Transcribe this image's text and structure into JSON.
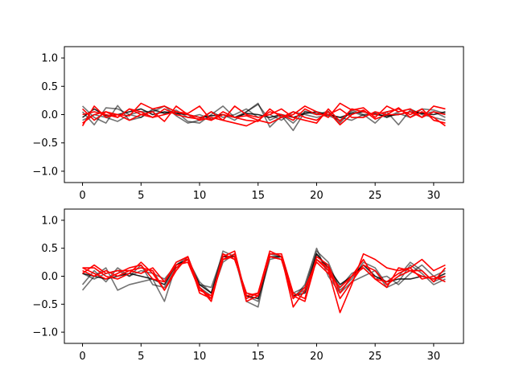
{
  "colors": {
    "gray": "#000000",
    "red": "#ff0000",
    "background": "#ffffff"
  },
  "chart_data": [
    {
      "type": "line",
      "title": "",
      "xlabel": "",
      "ylabel": "",
      "xlim": [
        -1.55,
        32.55
      ],
      "ylim": [
        -1.2,
        1.2
      ],
      "xticks": [
        0,
        5,
        10,
        15,
        20,
        25,
        30
      ],
      "yticks": [
        -1.0,
        -0.5,
        0.0,
        0.5,
        1.0
      ],
      "ytick_labels": [
        "−1.0",
        "−0.5",
        "0.0",
        "0.5",
        "1.0"
      ],
      "grid": false,
      "x": [
        0,
        1,
        2,
        3,
        4,
        5,
        6,
        7,
        8,
        9,
        10,
        11,
        12,
        13,
        14,
        15,
        16,
        17,
        18,
        19,
        20,
        21,
        22,
        23,
        24,
        25,
        26,
        27,
        28,
        29,
        30,
        31
      ],
      "series": [
        {
          "color": "#000000",
          "opacity": 0.55,
          "values": [
            0.15,
            -0.05,
            -0.15,
            0.16,
            -0.1,
            -0.05,
            0.08,
            0.02,
            0.05,
            -0.12,
            -0.15,
            0.0,
            0.15,
            -0.05,
            0.05,
            0.2,
            -0.22,
            -0.02,
            -0.28,
            0.05,
            0.0,
            0.06,
            -0.15,
            0.08,
            0.0,
            -0.15,
            0.05,
            -0.18,
            0.08,
            0.02,
            0.05,
            -0.05
          ]
        },
        {
          "color": "#000000",
          "opacity": 0.55,
          "values": [
            0.05,
            -0.18,
            0.12,
            0.1,
            0.0,
            -0.05,
            0.1,
            0.02,
            0.08,
            -0.05,
            0.0,
            -0.08,
            0.0,
            -0.1,
            0.05,
            0.18,
            -0.1,
            0.0,
            -0.15,
            0.06,
            0.02,
            -0.02,
            -0.1,
            0.05,
            -0.02,
            0.03,
            -0.05,
            0.02,
            -0.05,
            0.1,
            0.08,
            0.02
          ]
        },
        {
          "color": "#000000",
          "opacity": 0.55,
          "values": [
            -0.1,
            0.0,
            -0.05,
            -0.12,
            0.0,
            0.05,
            0.05,
            0.15,
            -0.02,
            -0.15,
            -0.1,
            0.05,
            -0.05,
            0.0,
            0.1,
            -0.05,
            0.0,
            -0.1,
            0.05,
            0.0,
            -0.05,
            0.0,
            -0.05,
            -0.1,
            0.0,
            0.02,
            -0.05,
            0.05,
            0.1,
            0.0,
            -0.05,
            -0.1
          ]
        },
        {
          "color": "#000000",
          "opacity": 0.85,
          "values": [
            -0.05,
            0.1,
            -0.02,
            0.0,
            0.05,
            0.1,
            0.0,
            0.05,
            0.02,
            0.0,
            -0.05,
            -0.02,
            0.0,
            -0.05,
            0.02,
            0.0,
            -0.05,
            0.0,
            -0.05,
            0.02,
            0.05,
            0.0,
            -0.05,
            0.02,
            0.05,
            0.0,
            -0.02,
            0.0,
            0.05,
            0.02,
            0.0,
            0.05
          ]
        },
        {
          "color": "#ff0000",
          "opacity": 1,
          "values": [
            -0.2,
            0.15,
            -0.05,
            0.0,
            -0.02,
            0.2,
            0.1,
            0.15,
            0.05,
            0.02,
            0.15,
            -0.1,
            0.0,
            -0.05,
            -0.1,
            -0.12,
            0.1,
            -0.05,
            0.0,
            0.15,
            0.05,
            -0.05,
            0.2,
            0.08,
            0.12,
            -0.05,
            0.15,
            0.05,
            0.1,
            -0.05,
            0.15,
            0.1
          ]
        },
        {
          "color": "#ff0000",
          "opacity": 1,
          "values": [
            0.1,
            -0.1,
            0.05,
            -0.05,
            0.1,
            0.05,
            -0.05,
            0.1,
            0.0,
            -0.05,
            -0.08,
            0.05,
            -0.1,
            0.15,
            0.0,
            -0.05,
            0.0,
            0.1,
            -0.05,
            -0.1,
            -0.15,
            0.1,
            -0.12,
            0.1,
            0.05,
            0.0,
            0.05,
            0.1,
            0.0,
            0.1,
            -0.1,
            -0.15
          ]
        },
        {
          "color": "#ff0000",
          "opacity": 1,
          "values": [
            0.0,
            0.05,
            0.0,
            -0.05,
            0.1,
            0.0,
            0.05,
            -0.12,
            0.15,
            0.0,
            -0.1,
            -0.05,
            -0.1,
            -0.15,
            -0.2,
            -0.1,
            -0.15,
            -0.05,
            0.05,
            -0.05,
            -0.1,
            0.05,
            -0.18,
            0.0,
            0.08,
            -0.08,
            0.0,
            0.12,
            -0.05,
            0.05,
            -0.05,
            -0.2
          ]
        },
        {
          "color": "#ff0000",
          "opacity": 1,
          "values": [
            -0.15,
            0.0,
            0.05,
            0.0,
            -0.1,
            0.0,
            -0.05,
            0.0,
            0.05,
            0.0,
            -0.05,
            -0.1,
            0.05,
            -0.05,
            -0.02,
            -0.1,
            0.05,
            0.0,
            -0.1,
            0.1,
            0.0,
            0.0,
            0.1,
            -0.05,
            -0.05,
            0.05,
            0.0,
            0.0,
            0.05,
            -0.05,
            0.05,
            0.0
          ]
        }
      ]
    },
    {
      "type": "line",
      "title": "",
      "xlabel": "",
      "ylabel": "",
      "xlim": [
        -1.55,
        32.55
      ],
      "ylim": [
        -1.2,
        1.2
      ],
      "xticks": [
        0,
        5,
        10,
        15,
        20,
        25,
        30
      ],
      "yticks": [
        -1.0,
        -0.5,
        0.0,
        0.5,
        1.0
      ],
      "ytick_labels": [
        "−1.0",
        "−0.5",
        "0.0",
        "0.5",
        "1.0"
      ],
      "grid": false,
      "x": [
        0,
        1,
        2,
        3,
        4,
        5,
        6,
        7,
        8,
        9,
        10,
        11,
        12,
        13,
        14,
        15,
        16,
        17,
        18,
        19,
        20,
        21,
        22,
        23,
        24,
        25,
        26,
        27,
        28,
        29,
        30,
        31
      ],
      "series": [
        {
          "color": "#000000",
          "opacity": 0.55,
          "values": [
            -0.25,
            0.0,
            0.15,
            -0.25,
            -0.15,
            -0.1,
            -0.05,
            -0.45,
            0.2,
            0.3,
            -0.1,
            -0.3,
            0.45,
            0.35,
            -0.45,
            -0.55,
            0.4,
            0.35,
            -0.4,
            -0.15,
            0.5,
            0.0,
            -0.3,
            -0.1,
            0.0,
            0.1,
            -0.2,
            -0.1,
            0.2,
            0.05,
            -0.15,
            -0.05
          ]
        },
        {
          "color": "#000000",
          "opacity": 0.55,
          "values": [
            -0.15,
            0.1,
            -0.1,
            0.15,
            0.0,
            0.1,
            0.05,
            -0.05,
            0.2,
            0.35,
            -0.2,
            -0.35,
            0.25,
            0.4,
            -0.35,
            -0.45,
            0.3,
            0.35,
            -0.35,
            -0.25,
            0.4,
            0.1,
            -0.2,
            0.05,
            0.15,
            -0.05,
            0.0,
            -0.15,
            0.05,
            0.2,
            0.0,
            0.1
          ]
        },
        {
          "color": "#000000",
          "opacity": 0.55,
          "values": [
            0.05,
            -0.05,
            0.05,
            0.1,
            0.0,
            0.2,
            -0.15,
            -0.2,
            0.15,
            0.3,
            -0.15,
            -0.2,
            0.4,
            0.3,
            -0.3,
            -0.35,
            0.35,
            0.3,
            -0.3,
            -0.2,
            0.45,
            0.25,
            -0.25,
            -0.05,
            0.25,
            0.15,
            -0.15,
            0.0,
            0.25,
            0.1,
            -0.1,
            0.0
          ]
        },
        {
          "color": "#000000",
          "opacity": 0.85,
          "values": [
            0.05,
            0.0,
            -0.05,
            0.0,
            0.05,
            0.0,
            -0.05,
            -0.15,
            0.2,
            0.3,
            -0.15,
            -0.3,
            0.35,
            0.35,
            -0.35,
            -0.4,
            0.35,
            0.35,
            -0.35,
            -0.3,
            0.4,
            0.15,
            -0.15,
            0.0,
            0.2,
            0.0,
            -0.1,
            -0.05,
            -0.05,
            0.0,
            -0.05,
            0.05
          ]
        },
        {
          "color": "#ff0000",
          "opacity": 1,
          "values": [
            0.15,
            0.15,
            0.0,
            -0.05,
            0.05,
            0.25,
            0.05,
            -0.25,
            0.15,
            0.3,
            -0.2,
            -0.45,
            0.35,
            0.45,
            -0.4,
            -0.3,
            0.45,
            0.35,
            -0.55,
            -0.25,
            0.3,
            0.1,
            -0.65,
            -0.15,
            0.4,
            0.3,
            0.15,
            0.1,
            0.15,
            0.3,
            0.1,
            0.2
          ]
        },
        {
          "color": "#ff0000",
          "opacity": 1,
          "values": [
            0.05,
            0.2,
            0.05,
            0.1,
            0.1,
            0.15,
            0.1,
            -0.25,
            0.1,
            0.35,
            -0.3,
            -0.4,
            0.3,
            0.4,
            -0.45,
            -0.35,
            0.4,
            0.4,
            -0.3,
            -0.4,
            0.35,
            0.2,
            -0.3,
            0.0,
            0.3,
            -0.05,
            -0.2,
            0.15,
            0.1,
            0.1,
            -0.1,
            0.15
          ]
        },
        {
          "color": "#ff0000",
          "opacity": 1,
          "values": [
            0.1,
            0.0,
            0.1,
            0.0,
            0.1,
            0.05,
            0.15,
            -0.1,
            0.2,
            0.25,
            -0.25,
            -0.35,
            0.3,
            0.35,
            -0.35,
            -0.3,
            0.35,
            0.3,
            -0.35,
            -0.45,
            0.3,
            0.15,
            -0.4,
            -0.1,
            0.2,
            0.1,
            -0.15,
            0.0,
            0.1,
            0.0,
            -0.05,
            0.0
          ]
        },
        {
          "color": "#ff0000",
          "opacity": 1,
          "values": [
            0.15,
            0.05,
            -0.05,
            0.05,
            0.15,
            0.2,
            -0.05,
            -0.1,
            0.25,
            0.35,
            -0.2,
            -0.4,
            0.4,
            0.3,
            -0.3,
            -0.35,
            0.35,
            0.3,
            -0.4,
            -0.2,
            0.25,
            0.05,
            -0.2,
            0.0,
            0.15,
            -0.05,
            -0.1,
            0.05,
            0.15,
            -0.05,
            0.0,
            -0.1
          ]
        }
      ]
    }
  ]
}
